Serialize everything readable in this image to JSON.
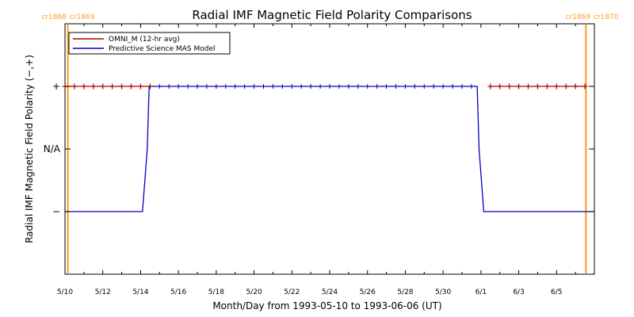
{
  "colors": {
    "omni": "#b00000",
    "mas": "#0000c8",
    "carrington": "#ff9a1a",
    "axis": "#000000"
  },
  "chart_data": {
    "type": "line",
    "title": "Radial IMF Magnetic Field Polarity Comparisons",
    "xlabel": "Month/Day from 1993-05-10 to 1993-06-06 (UT)",
    "ylabel": "Radial IMF Magnetic Field Polarity (−,+)",
    "x_range_days": [
      0,
      28
    ],
    "x_start_date": "1993-05-10",
    "x_ticks": [
      {
        "day": 0,
        "label": "5/10"
      },
      {
        "day": 2,
        "label": "5/12"
      },
      {
        "day": 4,
        "label": "5/14"
      },
      {
        "day": 6,
        "label": "5/16"
      },
      {
        "day": 8,
        "label": "5/18"
      },
      {
        "day": 10,
        "label": "5/20"
      },
      {
        "day": 12,
        "label": "5/22"
      },
      {
        "day": 14,
        "label": "5/24"
      },
      {
        "day": 16,
        "label": "5/26"
      },
      {
        "day": 18,
        "label": "5/28"
      },
      {
        "day": 20,
        "label": "5/30"
      },
      {
        "day": 22,
        "label": "6/1"
      },
      {
        "day": 24,
        "label": "6/3"
      },
      {
        "day": 26,
        "label": "6/5"
      }
    ],
    "y_range": [
      -2,
      2
    ],
    "y_ticks": [
      {
        "value": 1,
        "label": "+"
      },
      {
        "value": 0,
        "label": "N/A"
      },
      {
        "value": -1,
        "label": "−"
      }
    ],
    "legend_position": "top-left",
    "series": [
      {
        "name": "OMNI_M (12-hr avg)",
        "style": "line-with-plus-markers",
        "segments": [
          {
            "x": [
              0.0,
              0.5,
              1.0,
              1.5,
              2.0,
              2.5,
              3.0,
              3.5,
              4.0,
              4.5
            ],
            "y": [
              1,
              1,
              1,
              1,
              1,
              1,
              1,
              1,
              1,
              1
            ]
          },
          {
            "x": [
              22.5,
              23.0,
              23.5,
              24.0,
              24.5,
              25.0,
              25.5,
              26.0,
              26.5,
              27.0,
              27.5
            ],
            "y": [
              1,
              1,
              1,
              1,
              1,
              1,
              1,
              1,
              1,
              1,
              1
            ]
          }
        ]
      },
      {
        "name": "Predictive Science MAS Model",
        "style": "line",
        "x": [
          0.0,
          4.1,
          4.35,
          4.45,
          21.8,
          21.9,
          22.15,
          28.0
        ],
        "y": [
          -1,
          -1,
          0.0,
          1,
          1,
          0.0,
          -1,
          -1
        ]
      }
    ],
    "carrington_markers": [
      {
        "day": 0.15,
        "label_left": "cr1868",
        "label_right": "cr1869"
      },
      {
        "day": 27.55,
        "label_left": "cr1869",
        "label_right": "cr1870"
      }
    ]
  }
}
